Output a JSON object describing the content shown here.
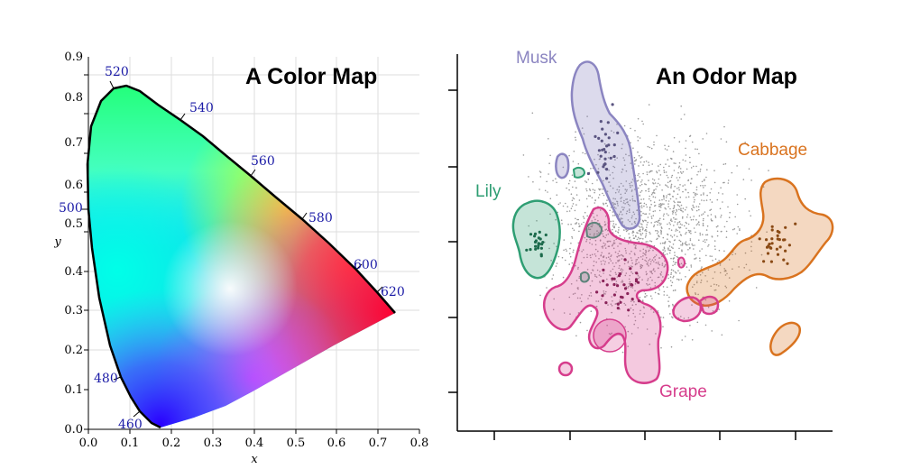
{
  "left_panel": {
    "title": "A Color Map",
    "xlabel": "x",
    "ylabel": "y",
    "x_ticks": [
      "0.0",
      "0.1",
      "0.2",
      "0.3",
      "0.4",
      "0.5",
      "0.6",
      "0.7",
      "0.8"
    ],
    "y_ticks": [
      "0.0",
      "0.1",
      "0.2",
      "0.3",
      "0.4",
      "0.5",
      "0.6",
      "0.7",
      "0.8",
      "0.9"
    ],
    "wavelength_labels": [
      "460",
      "480",
      "500",
      "520",
      "540",
      "560",
      "580",
      "600",
      "620"
    ],
    "label_color": "#1a1aa6"
  },
  "right_panel": {
    "title": "An Odor Map",
    "clusters": [
      {
        "name": "Musk",
        "color": "#8b85c1"
      },
      {
        "name": "Lily",
        "color": "#2e9e73"
      },
      {
        "name": "Cabbage",
        "color": "#d9731f"
      },
      {
        "name": "Grape",
        "color": "#d63d8c"
      }
    ]
  }
}
